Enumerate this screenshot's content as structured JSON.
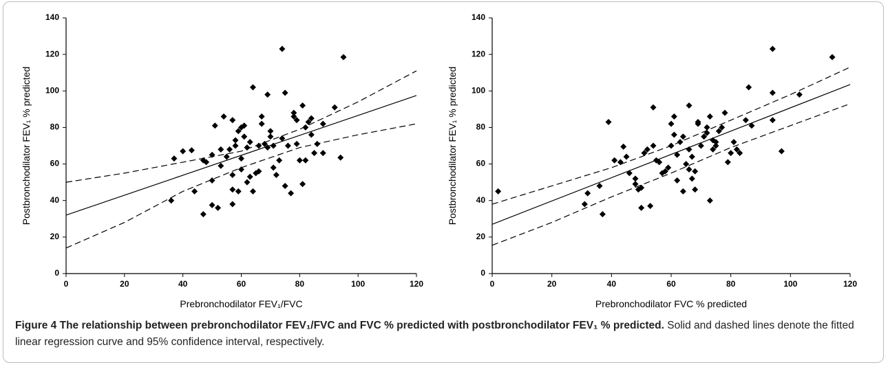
{
  "chart_data": [
    {
      "type": "scatter",
      "x_label": "Prebronchodilator FEV₁/FVC",
      "y_label": "Postbronchodilator FEV₁ % predicted",
      "xlim": [
        0,
        120
      ],
      "ylim": [
        0,
        140
      ],
      "xticks": [
        0,
        20,
        40,
        60,
        80,
        100,
        120
      ],
      "yticks": [
        0,
        20,
        40,
        60,
        80,
        100,
        120,
        140
      ],
      "color": "#000000",
      "points": {
        "x": [
          36,
          37,
          40,
          43,
          44,
          47,
          47,
          48,
          50,
          50,
          50,
          51,
          52,
          53,
          53,
          54,
          55,
          56,
          57,
          57,
          57,
          57,
          58,
          58,
          59,
          59,
          60,
          60,
          60,
          61,
          61,
          62,
          62,
          63,
          63,
          64,
          64,
          65,
          66,
          66,
          67,
          67,
          68,
          69,
          69,
          70,
          70,
          71,
          71,
          72,
          73,
          74,
          74,
          75,
          75,
          76,
          77,
          78,
          78,
          79,
          79,
          80,
          81,
          81,
          82,
          82,
          83,
          84,
          84,
          85,
          86,
          88,
          88,
          92,
          94,
          95
        ],
        "y": [
          40,
          63,
          67,
          67.5,
          45,
          32.5,
          62,
          61,
          65,
          51,
          37.5,
          81,
          36,
          68,
          59,
          86,
          64,
          68,
          84,
          54,
          46,
          38,
          73,
          70,
          78,
          45,
          80,
          63,
          57,
          81,
          75,
          69,
          50,
          53,
          72,
          45,
          102,
          55,
          56,
          70,
          82,
          86,
          71,
          98,
          69,
          75,
          78,
          70,
          58,
          54,
          62,
          74,
          123,
          99,
          48,
          70,
          44,
          88,
          86,
          84,
          71,
          62,
          92,
          49,
          62,
          80,
          83,
          85,
          76,
          66,
          71,
          66,
          82,
          91,
          63.5,
          118.5
        ]
      },
      "fit": {
        "x": [
          0,
          120
        ],
        "y": [
          32,
          97.5
        ]
      },
      "ci_upper": {
        "x": [
          0,
          20,
          40,
          60,
          80,
          100,
          120
        ],
        "y": [
          50,
          55,
          61,
          67,
          79,
          94,
          111
        ]
      },
      "ci_lower": {
        "x": [
          0,
          20,
          40,
          60,
          80,
          100,
          120
        ],
        "y": [
          14,
          28,
          45,
          58,
          69,
          76,
          82
        ]
      }
    },
    {
      "type": "scatter",
      "x_label": "Prebronchodilator FVC % predicted",
      "y_label": "Postbronchodilator FEV₁ % predicted",
      "xlim": [
        0,
        120
      ],
      "ylim": [
        0,
        140
      ],
      "xticks": [
        0,
        20,
        40,
        60,
        80,
        100,
        120
      ],
      "yticks": [
        0,
        20,
        40,
        60,
        80,
        100,
        120,
        140
      ],
      "color": "#000000",
      "points": {
        "x": [
          2,
          31,
          32,
          36,
          37,
          39,
          41,
          43,
          44,
          45,
          46,
          48,
          48,
          49,
          50,
          50,
          51,
          52,
          53,
          54,
          54,
          55,
          56,
          57,
          58,
          59,
          60,
          60,
          61,
          61,
          62,
          62,
          63,
          64,
          64,
          65,
          66,
          66,
          66,
          67,
          67,
          68,
          68,
          69,
          69,
          70,
          71,
          72,
          72,
          73,
          73,
          74,
          74,
          75,
          75,
          76,
          77,
          78,
          79,
          80,
          81,
          82,
          83,
          85,
          86,
          87,
          94,
          94,
          94,
          97,
          103,
          114
        ],
        "y": [
          45,
          38,
          44,
          48,
          32.5,
          83,
          62,
          61,
          69.5,
          64,
          55,
          52,
          49,
          46,
          36,
          47,
          66,
          68,
          37,
          91,
          70,
          62,
          61,
          55,
          56,
          58,
          82,
          70,
          86,
          76,
          51,
          65,
          72,
          45,
          75,
          60,
          57,
          68,
          92,
          52,
          64,
          56,
          46,
          82,
          83,
          70,
          75,
          77,
          80,
          40,
          86,
          68,
          73,
          70,
          72,
          78,
          80,
          88,
          61,
          66,
          72,
          68,
          66,
          84,
          102,
          81,
          84,
          99,
          123,
          67,
          98,
          118.5
        ]
      },
      "fit": {
        "x": [
          0,
          120
        ],
        "y": [
          27,
          103.5
        ]
      },
      "ci_upper": {
        "x": [
          0,
          20,
          40,
          60,
          80,
          100,
          120
        ],
        "y": [
          38,
          48,
          58,
          70,
          84,
          98,
          113
        ]
      },
      "ci_lower": {
        "x": [
          0,
          20,
          40,
          60,
          80,
          100,
          120
        ],
        "y": [
          15.5,
          28,
          42,
          55,
          69,
          81,
          93
        ]
      }
    }
  ],
  "caption": {
    "label": "Figure 4",
    "title": "The relationship between prebronchodilator FEV₁/FVC and FVC % predicted with postbronchodilator FEV₁ % predicted.",
    "text": "Solid and dashed lines denote the fitted linear regression curve and 95% confidence interval, respectively."
  }
}
